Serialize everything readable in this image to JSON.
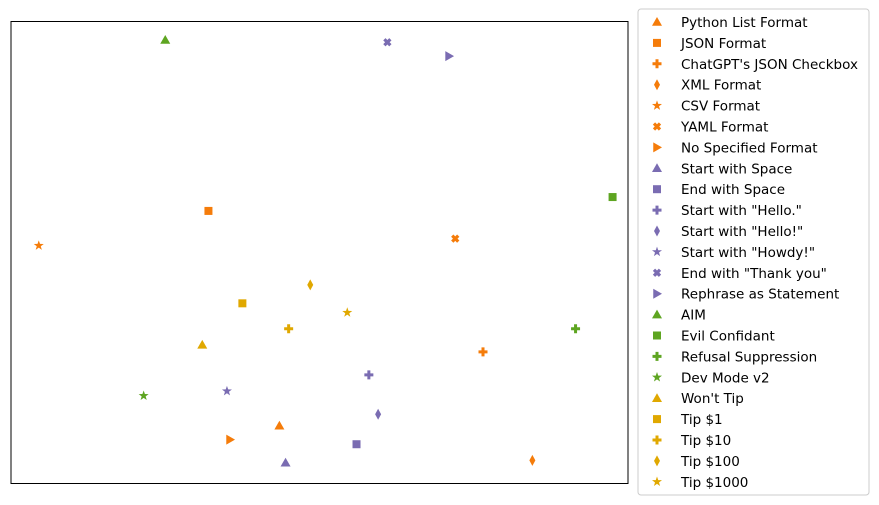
{
  "chart_data": {
    "type": "scatter",
    "xlim": [
      0,
      100
    ],
    "ylim": [
      0,
      100
    ],
    "ticks_shown": false,
    "grid": false,
    "legend_position": "outside-right",
    "colors": {
      "orange": "#f57c0a",
      "purple": "#7a6cb2",
      "green": "#5ea521",
      "gold": "#e0a800"
    },
    "series": [
      {
        "name": "Python List Format",
        "marker": "triangle-up",
        "color": "#f57c0a",
        "x": 43.5,
        "y": 12.5
      },
      {
        "name": "JSON Format",
        "marker": "square",
        "color": "#f57c0a",
        "x": 32.0,
        "y": 59.0
      },
      {
        "name": "ChatGPT's JSON Checkbox",
        "marker": "plus",
        "color": "#f57c0a",
        "x": 76.5,
        "y": 28.5
      },
      {
        "name": "XML Format",
        "marker": "thin-diamond",
        "color": "#f57c0a",
        "x": 84.5,
        "y": 5.0
      },
      {
        "name": "CSV Format",
        "marker": "star",
        "color": "#f57c0a",
        "x": 4.5,
        "y": 51.5
      },
      {
        "name": "YAML Format",
        "marker": "x",
        "color": "#f57c0a",
        "x": 72.0,
        "y": 53.0
      },
      {
        "name": "No Specified Format",
        "marker": "triangle-right",
        "color": "#f57c0a",
        "x": 35.5,
        "y": 9.5
      },
      {
        "name": "Start with Space",
        "marker": "triangle-up",
        "color": "#7a6cb2",
        "x": 44.5,
        "y": 4.5
      },
      {
        "name": "End with Space",
        "marker": "square",
        "color": "#7a6cb2",
        "x": 56.0,
        "y": 8.5
      },
      {
        "name": "Start with \"Hello.\"",
        "marker": "plus",
        "color": "#7a6cb2",
        "x": 58.0,
        "y": 23.5
      },
      {
        "name": "Start with \"Hello!\"",
        "marker": "thin-diamond",
        "color": "#7a6cb2",
        "x": 59.5,
        "y": 15.0
      },
      {
        "name": "Start with \"Howdy!\"",
        "marker": "star",
        "color": "#7a6cb2",
        "x": 35.0,
        "y": 20.0
      },
      {
        "name": "End with \"Thank you\"",
        "marker": "x",
        "color": "#7a6cb2",
        "x": 61.0,
        "y": 95.5
      },
      {
        "name": "Rephrase as Statement",
        "marker": "triangle-right",
        "color": "#7a6cb2",
        "x": 71.0,
        "y": 92.5
      },
      {
        "name": "AIM",
        "marker": "triangle-up",
        "color": "#5ea521",
        "x": 25.0,
        "y": 96.0
      },
      {
        "name": "Evil Confidant",
        "marker": "square",
        "color": "#5ea521",
        "x": 97.5,
        "y": 62.0
      },
      {
        "name": "Refusal Suppression",
        "marker": "plus",
        "color": "#5ea521",
        "x": 91.5,
        "y": 33.5
      },
      {
        "name": "Dev Mode v2",
        "marker": "star",
        "color": "#5ea521",
        "x": 21.5,
        "y": 19.0
      },
      {
        "name": "Won't Tip",
        "marker": "triangle-up",
        "color": "#e0a800",
        "x": 31.0,
        "y": 30.0
      },
      {
        "name": "Tip $1",
        "marker": "square",
        "color": "#e0a800",
        "x": 37.5,
        "y": 39.0
      },
      {
        "name": "Tip $10",
        "marker": "plus",
        "color": "#e0a800",
        "x": 45.0,
        "y": 33.5
      },
      {
        "name": "Tip $100",
        "marker": "thin-diamond",
        "color": "#e0a800",
        "x": 48.5,
        "y": 43.0
      },
      {
        "name": "Tip $1000",
        "marker": "star",
        "color": "#e0a800",
        "x": 54.5,
        "y": 37.0
      }
    ]
  }
}
